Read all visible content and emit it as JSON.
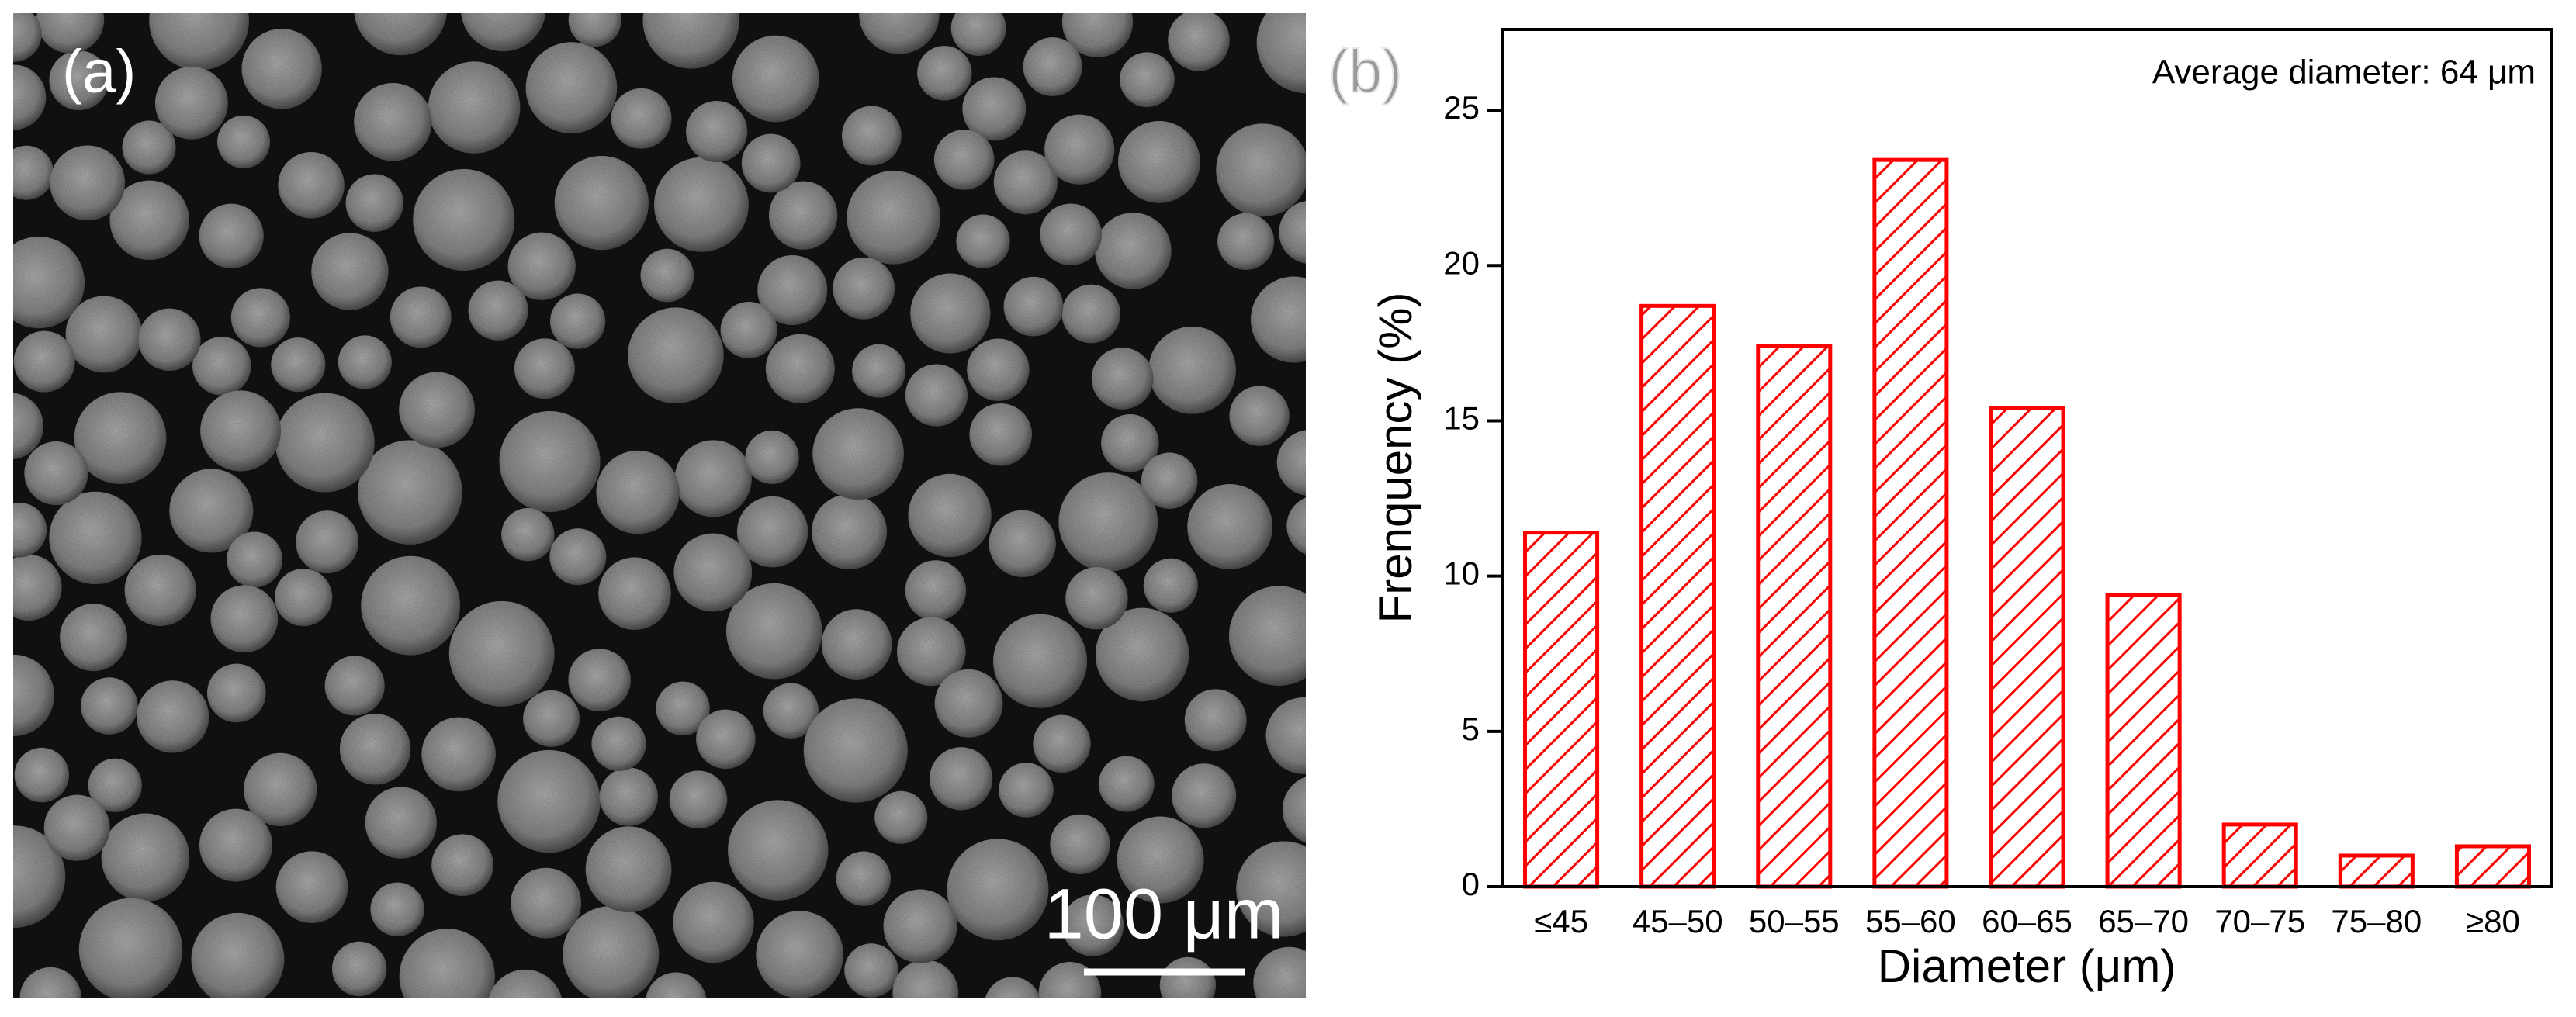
{
  "image_panel": {
    "label": "(a)",
    "scale_bar": "100 μm"
  },
  "chart_data": {
    "type": "bar",
    "panel_label": "(b)",
    "annotation": "Average diameter: 64 μm",
    "x_label": "Diameter (μm)",
    "y_label": "Frenquency (%)",
    "categories": [
      "≤45",
      "45–50",
      "50–55",
      "55–60",
      "60–65",
      "65–70",
      "70–75",
      "75–80",
      "≥80"
    ],
    "values": [
      11.4,
      18.7,
      17.4,
      23.4,
      15.4,
      9.4,
      2.0,
      1.0,
      1.3
    ],
    "color": "#ff0000",
    "ylim": [
      0,
      27.6
    ],
    "yticks": [
      0,
      5,
      10,
      15,
      20,
      25
    ],
    "hatch": true
  }
}
